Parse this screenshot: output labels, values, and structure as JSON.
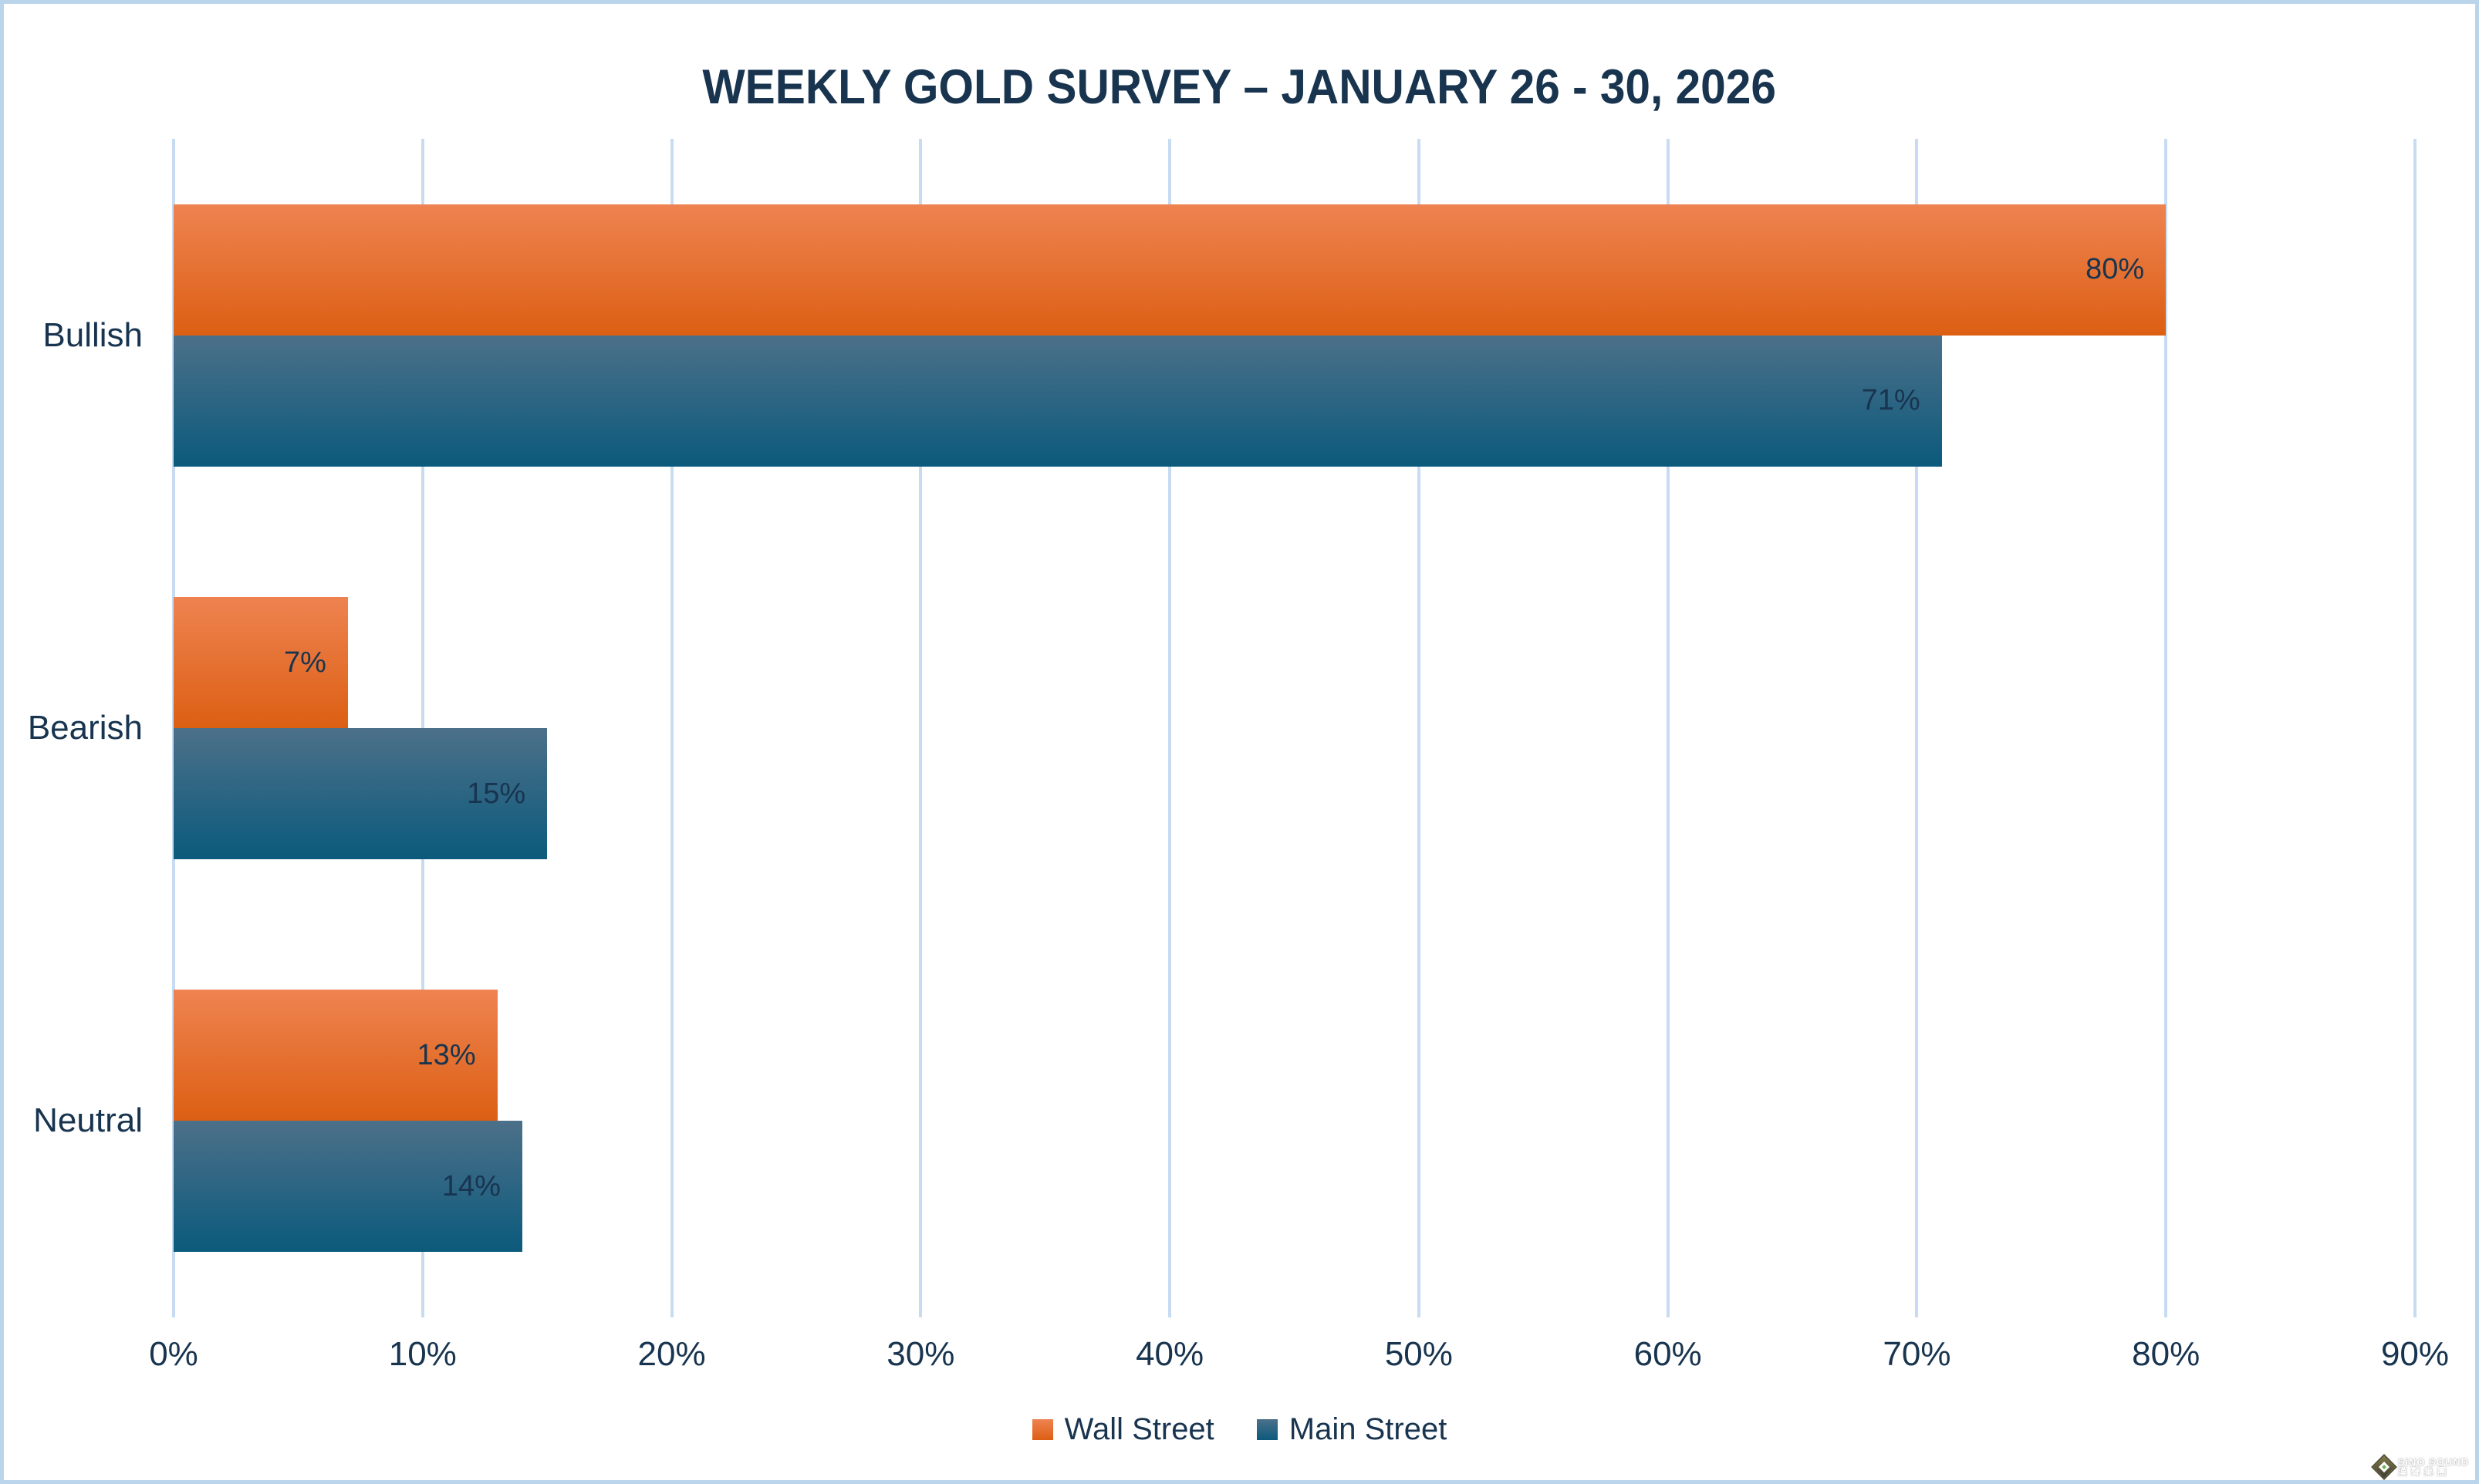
{
  "title": "WEEKLY GOLD SURVEY – JANUARY 26 - 30, 2026",
  "colors": {
    "text_navy": "#18344F",
    "gridline": "#C7DCF2",
    "page_border": "#BAD4EC",
    "wall_street_top": "#EE8351",
    "wall_street_bottom": "#DC5F13",
    "main_street_top": "#4C7089",
    "main_street_bottom": "#0B5A7C"
  },
  "chart_data": {
    "type": "bar",
    "orientation": "horizontal",
    "title": "WEEKLY GOLD SURVEY – JANUARY 26 - 30, 2026",
    "categories": [
      "Bullish",
      "Bearish",
      "Neutral"
    ],
    "series": [
      {
        "name": "Wall Street",
        "values": [
          80,
          7,
          13
        ]
      },
      {
        "name": "Main Street",
        "values": [
          71,
          15,
          14
        ]
      }
    ],
    "value_suffix": "%",
    "xlim": [
      0,
      90
    ],
    "x_ticks": [
      "0%",
      "10%",
      "20%",
      "30%",
      "40%",
      "50%",
      "60%",
      "70%",
      "80%",
      "90%"
    ],
    "grid": true,
    "legend_position": "bottom",
    "data_labels": true
  },
  "legend": {
    "items": [
      {
        "label": "Wall Street"
      },
      {
        "label": "Main Street"
      }
    ]
  },
  "watermark": {
    "line1": "SiNO SOUND",
    "line2": "漢聲集團"
  }
}
